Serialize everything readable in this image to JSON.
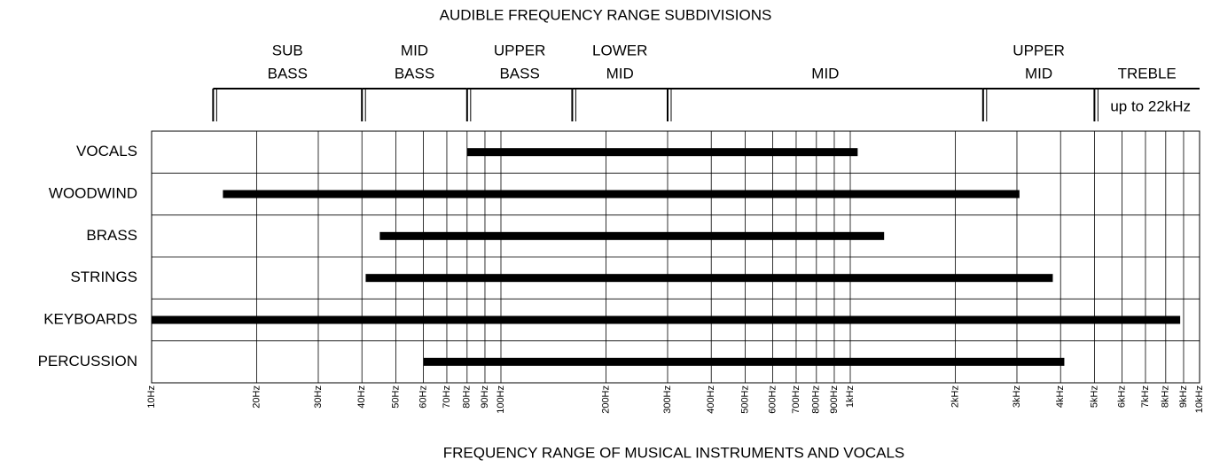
{
  "chart_data": {
    "type": "range_bar",
    "title": "AUDIBLE FREQUENCY RANGE SUBDIVISIONS",
    "subtitle": "FREQUENCY RANGE OF MUSICAL INSTRUMENTS AND VOCALS",
    "log_x": true,
    "grid": true,
    "color": "#000000",
    "categories": [
      "VOCALS",
      "WOODWIND",
      "BRASS",
      "STRINGS",
      "KEYBOARDS",
      "PERCUSSION"
    ],
    "starts": [
      80,
      16,
      45,
      41,
      10,
      60
    ],
    "ends": [
      1050,
      3050,
      1250,
      3800,
      8800,
      4100
    ],
    "bands": [
      {
        "label": [
          "SUB",
          "BASS"
        ],
        "start": 15,
        "end": 40
      },
      {
        "label": [
          "MID",
          "BASS"
        ],
        "start": 40,
        "end": 80
      },
      {
        "label": [
          "UPPER",
          "BASS"
        ],
        "start": 80,
        "end": 160
      },
      {
        "label": [
          "LOWER",
          "MID"
        ],
        "start": 160,
        "end": 300
      },
      {
        "label": [
          "MID"
        ],
        "start": 300,
        "end": 2400
      },
      {
        "label": [
          "UPPER",
          "MID"
        ],
        "start": 2400,
        "end": 5000
      },
      {
        "label": [
          "TREBLE"
        ],
        "start": 5000,
        "end": 10000,
        "note": "up to 22kHz"
      }
    ],
    "xlim": [
      10,
      10000
    ],
    "xticks": [
      {
        "value": 10,
        "label": "10Hz"
      },
      {
        "value": 20,
        "label": "20Hz"
      },
      {
        "value": 30,
        "label": "30Hz"
      },
      {
        "value": 40,
        "label": "40Hz"
      },
      {
        "value": 50,
        "label": "50Hz"
      },
      {
        "value": 60,
        "label": "60Hz"
      },
      {
        "value": 70,
        "label": "70Hz"
      },
      {
        "value": 80,
        "label": "80Hz"
      },
      {
        "value": 90,
        "label": "90Hz"
      },
      {
        "value": 100,
        "label": "100Hz"
      },
      {
        "value": 200,
        "label": "200Hz"
      },
      {
        "value": 300,
        "label": "300Hz"
      },
      {
        "value": 400,
        "label": "400Hz"
      },
      {
        "value": 500,
        "label": "500Hz"
      },
      {
        "value": 600,
        "label": "600Hz"
      },
      {
        "value": 700,
        "label": "700Hz"
      },
      {
        "value": 800,
        "label": "800Hz"
      },
      {
        "value": 900,
        "label": "900Hz"
      },
      {
        "value": 1000,
        "label": "1kHz"
      },
      {
        "value": 2000,
        "label": "2kHz"
      },
      {
        "value": 3000,
        "label": "3kHz"
      },
      {
        "value": 4000,
        "label": "4kHz"
      },
      {
        "value": 5000,
        "label": "5kHz"
      },
      {
        "value": 6000,
        "label": "6kHz"
      },
      {
        "value": 7000,
        "label": "7kHz"
      },
      {
        "value": 8000,
        "label": "8kHz"
      },
      {
        "value": 9000,
        "label": "9kHz"
      },
      {
        "value": 10000,
        "label": "10kHz"
      }
    ]
  }
}
